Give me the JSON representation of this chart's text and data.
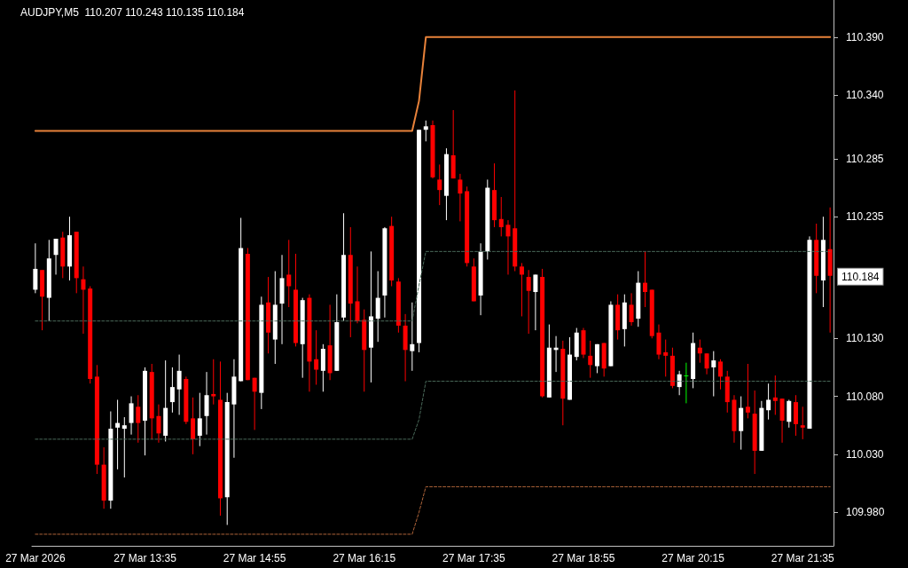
{
  "chart_data": {
    "type": "candlestick",
    "title": "AUDJPY,M5  110.207 110.243 110.135 110.184",
    "categories": [
      "27 Mar 2026",
      null,
      null,
      null,
      null,
      null,
      null,
      null,
      null,
      null,
      null,
      null,
      null,
      null,
      null,
      null,
      "27 Mar 13:35",
      null,
      null,
      null,
      null,
      null,
      null,
      null,
      null,
      null,
      null,
      null,
      null,
      null,
      null,
      null,
      "27 Mar 14:55",
      null,
      null,
      null,
      null,
      null,
      null,
      null,
      null,
      null,
      null,
      null,
      null,
      null,
      null,
      null,
      "27 Mar 16:15",
      null,
      null,
      null,
      null,
      null,
      null,
      null,
      null,
      null,
      null,
      null,
      null,
      null,
      null,
      null,
      "27 Mar 17:35",
      null,
      null,
      null,
      null,
      null,
      null,
      null,
      null,
      null,
      null,
      null,
      null,
      null,
      null,
      null,
      "27 Mar 18:55",
      null,
      null,
      null,
      null,
      null,
      null,
      null,
      null,
      null,
      null,
      null,
      null,
      null,
      null,
      null,
      "27 Mar 20:15",
      null,
      null,
      null,
      null,
      null,
      null,
      null,
      null,
      null,
      null,
      null,
      null,
      null,
      null,
      null,
      "27 Mar 21:35",
      null,
      null,
      null,
      null
    ],
    "colors": [
      "#ffffff",
      "#ff0000",
      "#ffffff",
      "#ffffff",
      "#ff0000",
      "#ffffff",
      "#ff0000",
      "#ff0000",
      "#ff0000",
      "#ff0000",
      "#ff0000",
      "#ffffff",
      "#ffffff",
      "#ffffff",
      "#ffffff",
      "#ff0000",
      "#ffffff",
      "#ff0000",
      "#ff0000",
      "#ffffff",
      "#ffffff",
      "#ffffff",
      "#ff0000",
      "#ff0000",
      "#ffffff",
      "#ffffff",
      "#ff0000",
      "#ff0000",
      "#ffffff",
      "#ffffff",
      "#ffffff",
      "#ff0000",
      "#ff0000",
      "#ffffff",
      "#ff0000",
      "#ffffff",
      "#ffffff",
      "#ff0000",
      "#ff0000",
      "#ffffff",
      "#ff0000",
      "#ff0000",
      "#ffffff",
      "#ff0000",
      "#ffffff",
      "#ffffff",
      "#ff0000",
      "#ff0000",
      "#ff0000",
      "#ffffff",
      "#ffffff",
      "#ffffff",
      "#ff0000",
      "#ff0000",
      "#ff0000",
      "#ffffff",
      "#ffffff",
      "#ffffff",
      "#ff0000",
      "#ff0000",
      "#ffffff",
      "#ff0000",
      "#ff0000",
      "#ff0000",
      "#ff0000",
      "#ffffff",
      "#ffffff",
      "#ff0000",
      "#ff0000",
      "#ff0000",
      "#ff0000",
      "#ff0000",
      "#ff0000",
      "#ffffff",
      "#ff0000",
      "#ffffff",
      "#ffffff",
      "#ff0000",
      "#ffffff",
      "#ffffff",
      "#ff0000",
      "#ff0000",
      "#ffffff",
      "#ff0000",
      "#ffffff",
      "#ff0000",
      "#ffffff",
      "#ff0000",
      "#ffffff",
      "#ff0000",
      "#ff0000",
      "#ff0000",
      "#ff0000",
      "#ff0000",
      "#ffffff",
      "#00ff00",
      "#ffffff",
      "#ff0000",
      "#ff0000",
      "#ffffff",
      "#ff0000",
      "#ff0000",
      "#ff0000",
      "#ffffff",
      "#ff0000",
      "#ff0000",
      "#ffffff",
      "#ffffff",
      "#ff0000",
      "#ff0000",
      "#ffffff",
      "#ff0000",
      "#ff0000",
      "#ffffff",
      "#ff0000",
      "#ffffff",
      "#ff0000"
    ],
    "ohlc": [
      [
        110.172,
        110.212,
        110.169,
        110.19
      ],
      [
        110.189,
        110.189,
        110.137,
        110.166
      ],
      [
        110.165,
        110.215,
        110.145,
        110.199
      ],
      [
        110.202,
        110.216,
        110.185,
        110.216
      ],
      [
        110.217,
        110.222,
        110.182,
        110.192
      ],
      [
        110.192,
        110.235,
        110.18,
        110.219
      ],
      [
        110.222,
        110.222,
        110.169,
        110.182
      ],
      [
        110.181,
        110.192,
        110.134,
        110.172
      ],
      [
        110.173,
        110.175,
        110.091,
        110.095
      ],
      [
        110.097,
        110.107,
        110.013,
        110.021
      ],
      [
        110.021,
        110.036,
        109.983,
        109.99
      ],
      [
        109.99,
        110.067,
        109.983,
        110.052
      ],
      [
        110.053,
        110.077,
        110.017,
        110.057
      ],
      [
        110.052,
        110.062,
        110.01,
        110.055
      ],
      [
        110.057,
        110.08,
        110.047,
        110.074
      ],
      [
        110.071,
        110.081,
        110.04,
        110.057
      ],
      [
        110.059,
        110.105,
        110.029,
        110.102
      ],
      [
        110.101,
        110.108,
        110.043,
        110.061
      ],
      [
        110.063,
        110.073,
        110.04,
        110.048
      ],
      [
        110.046,
        110.111,
        110.041,
        110.07
      ],
      [
        110.075,
        110.105,
        110.066,
        110.088
      ],
      [
        110.086,
        110.116,
        110.064,
        110.102
      ],
      [
        110.095,
        110.097,
        110.056,
        110.058
      ],
      [
        110.061,
        110.079,
        110.03,
        110.043
      ],
      [
        110.046,
        110.083,
        110.037,
        110.061
      ],
      [
        110.063,
        110.101,
        110.047,
        110.081
      ],
      [
        110.082,
        110.112,
        110.073,
        110.08
      ],
      [
        110.077,
        110.11,
        109.977,
        109.992
      ],
      [
        109.993,
        110.083,
        109.969,
        110.075
      ],
      [
        110.073,
        110.112,
        110.027,
        110.097
      ],
      [
        110.093,
        110.234,
        110.093,
        110.208
      ],
      [
        110.203,
        110.208,
        110.094,
        110.094
      ],
      [
        110.096,
        110.096,
        110.051,
        110.084
      ],
      [
        110.083,
        110.166,
        110.069,
        110.159
      ],
      [
        110.161,
        110.183,
        110.117,
        110.135
      ],
      [
        110.129,
        110.188,
        110.108,
        110.159
      ],
      [
        110.16,
        110.202,
        110.125,
        110.182
      ],
      [
        110.185,
        110.215,
        110.157,
        110.175
      ],
      [
        110.172,
        110.203,
        110.123,
        110.126
      ],
      [
        110.125,
        110.165,
        110.096,
        110.163
      ],
      [
        110.165,
        110.168,
        110.084,
        110.11
      ],
      [
        110.112,
        110.137,
        110.09,
        110.103
      ],
      [
        110.102,
        110.125,
        110.084,
        110.121
      ],
      [
        110.124,
        110.159,
        110.094,
        110.1
      ],
      [
        110.102,
        110.168,
        110.102,
        110.144
      ],
      [
        110.148,
        110.238,
        110.145,
        110.202
      ],
      [
        110.202,
        110.226,
        110.131,
        110.16
      ],
      [
        110.162,
        110.192,
        110.143,
        110.145
      ],
      [
        110.146,
        110.155,
        110.084,
        110.12
      ],
      [
        110.122,
        110.205,
        110.092,
        110.149
      ],
      [
        110.147,
        110.188,
        110.127,
        110.165
      ],
      [
        110.167,
        110.226,
        110.148,
        110.225
      ],
      [
        110.227,
        110.235,
        110.175,
        110.18
      ],
      [
        110.179,
        110.182,
        110.135,
        110.141
      ],
      [
        110.141,
        110.151,
        110.093,
        110.12
      ],
      [
        110.119,
        110.161,
        110.102,
        110.125
      ],
      [
        110.126,
        110.31,
        110.118,
        110.31
      ],
      [
        110.31,
        110.318,
        110.3,
        110.313
      ],
      [
        110.314,
        110.318,
        110.268,
        110.269
      ],
      [
        110.267,
        110.28,
        110.245,
        110.258
      ],
      [
        110.253,
        110.294,
        110.232,
        110.289
      ],
      [
        110.288,
        110.327,
        110.268,
        110.268
      ],
      [
        110.267,
        110.272,
        110.231,
        110.255
      ],
      [
        110.257,
        110.261,
        110.192,
        110.195
      ],
      [
        110.192,
        110.199,
        110.162,
        110.162
      ],
      [
        110.167,
        110.212,
        110.15,
        110.205
      ],
      [
        110.205,
        110.267,
        110.198,
        110.26
      ],
      [
        110.258,
        110.281,
        110.226,
        110.232
      ],
      [
        110.233,
        110.252,
        110.218,
        110.226
      ],
      [
        110.228,
        110.232,
        110.185,
        110.218
      ],
      [
        110.225,
        110.344,
        110.188,
        110.192
      ],
      [
        110.192,
        110.195,
        110.149,
        110.185
      ],
      [
        110.183,
        110.189,
        110.134,
        110.171
      ],
      [
        110.17,
        110.185,
        110.137,
        110.185
      ],
      [
        110.183,
        110.19,
        110.079,
        110.08
      ],
      [
        110.079,
        110.142,
        110.079,
        110.122
      ],
      [
        110.12,
        110.132,
        110.101,
        110.122
      ],
      [
        110.121,
        110.128,
        110.055,
        110.078
      ],
      [
        110.077,
        110.131,
        110.077,
        110.116
      ],
      [
        110.114,
        110.139,
        110.111,
        110.135
      ],
      [
        110.137,
        110.139,
        110.113,
        110.116
      ],
      [
        110.115,
        110.128,
        110.096,
        110.107
      ],
      [
        110.106,
        110.125,
        110.1,
        110.125
      ],
      [
        110.126,
        110.126,
        110.097,
        110.104
      ],
      [
        110.106,
        110.162,
        110.106,
        110.159
      ],
      [
        110.159,
        110.168,
        110.129,
        110.137
      ],
      [
        110.138,
        110.168,
        110.123,
        110.161
      ],
      [
        110.159,
        110.169,
        110.141,
        110.144
      ],
      [
        110.147,
        110.188,
        110.14,
        110.178
      ],
      [
        110.178,
        110.205,
        110.157,
        110.17
      ],
      [
        110.172,
        110.172,
        110.13,
        110.132
      ],
      [
        110.135,
        110.142,
        110.112,
        110.116
      ],
      [
        110.118,
        110.129,
        110.097,
        110.115
      ],
      [
        110.115,
        110.122,
        110.087,
        110.089
      ],
      [
        110.088,
        110.102,
        110.081,
        110.099
      ],
      [
        110.098,
        110.109,
        110.074,
        110.098
      ],
      [
        110.095,
        110.135,
        110.087,
        110.126
      ],
      [
        110.122,
        110.129,
        110.109,
        110.117
      ],
      [
        110.117,
        110.117,
        110.099,
        110.104
      ],
      [
        110.105,
        110.119,
        110.08,
        110.111
      ],
      [
        110.11,
        110.112,
        110.086,
        110.097
      ],
      [
        110.097,
        110.102,
        110.066,
        110.075
      ],
      [
        110.077,
        110.081,
        110.04,
        110.05
      ],
      [
        110.05,
        110.08,
        110.034,
        110.07
      ],
      [
        110.071,
        110.108,
        110.061,
        110.066
      ],
      [
        110.065,
        110.085,
        110.013,
        110.033
      ],
      [
        110.033,
        110.076,
        110.033,
        110.07
      ],
      [
        110.068,
        110.091,
        110.06,
        110.077
      ],
      [
        110.079,
        110.098,
        110.064,
        110.076
      ],
      [
        110.078,
        110.078,
        110.04,
        110.059
      ],
      [
        110.058,
        110.077,
        110.053,
        110.076
      ],
      [
        110.075,
        110.081,
        110.046,
        110.056
      ],
      [
        110.055,
        110.071,
        110.043,
        110.053
      ],
      [
        110.052,
        110.218,
        110.052,
        110.215
      ],
      [
        110.215,
        110.229,
        110.169,
        110.184
      ],
      [
        110.18,
        110.235,
        110.157,
        110.215
      ],
      [
        110.207,
        110.243,
        110.135,
        110.184
      ]
    ],
    "series": [
      {
        "type": "line",
        "color": "#e8823a",
        "line_style": "solid",
        "values": [
          110.309,
          110.309,
          110.309,
          110.309,
          110.309,
          110.309,
          110.309,
          110.309,
          110.309,
          110.309,
          110.309,
          110.309,
          110.309,
          110.309,
          110.309,
          110.309,
          110.309,
          110.309,
          110.309,
          110.309,
          110.309,
          110.309,
          110.309,
          110.309,
          110.309,
          110.309,
          110.309,
          110.309,
          110.309,
          110.309,
          110.309,
          110.309,
          110.309,
          110.309,
          110.309,
          110.309,
          110.309,
          110.309,
          110.309,
          110.309,
          110.309,
          110.309,
          110.309,
          110.309,
          110.309,
          110.309,
          110.309,
          110.309,
          110.309,
          110.309,
          110.309,
          110.309,
          110.309,
          110.309,
          110.309,
          110.309,
          110.335,
          110.39,
          110.39,
          110.39,
          110.39,
          110.39,
          110.39,
          110.39,
          110.39,
          110.39,
          110.39,
          110.39,
          110.39,
          110.39,
          110.39,
          110.39,
          110.39,
          110.39,
          110.39,
          110.39,
          110.39,
          110.39,
          110.39,
          110.39,
          110.39,
          110.39,
          110.39,
          110.39,
          110.39,
          110.39,
          110.39,
          110.39,
          110.39,
          110.39,
          110.39,
          110.39,
          110.39,
          110.39,
          110.39,
          110.39,
          110.39,
          110.39,
          110.39,
          110.39,
          110.39,
          110.39,
          110.39,
          110.39,
          110.39,
          110.39,
          110.39,
          110.39,
          110.39,
          110.39,
          110.39,
          110.39,
          110.39,
          110.39,
          110.39,
          110.39,
          110.39
        ]
      },
      {
        "type": "line",
        "color": "#4a6a5a",
        "line_style": "dashed",
        "values": [
          110.145,
          110.145,
          110.145,
          110.145,
          110.145,
          110.145,
          110.145,
          110.145,
          110.145,
          110.145,
          110.145,
          110.145,
          110.145,
          110.145,
          110.145,
          110.145,
          110.145,
          110.145,
          110.145,
          110.145,
          110.145,
          110.145,
          110.145,
          110.145,
          110.145,
          110.145,
          110.145,
          110.145,
          110.145,
          110.145,
          110.145,
          110.145,
          110.145,
          110.145,
          110.145,
          110.145,
          110.145,
          110.145,
          110.145,
          110.145,
          110.145,
          110.145,
          110.145,
          110.145,
          110.145,
          110.145,
          110.145,
          110.145,
          110.145,
          110.145,
          110.145,
          110.145,
          110.145,
          110.145,
          110.145,
          110.145,
          110.176,
          110.205,
          110.205,
          110.205,
          110.205,
          110.205,
          110.205,
          110.205,
          110.205,
          110.205,
          110.205,
          110.205,
          110.205,
          110.205,
          110.205,
          110.205,
          110.205,
          110.205,
          110.205,
          110.205,
          110.205,
          110.205,
          110.205,
          110.205,
          110.205,
          110.205,
          110.205,
          110.205,
          110.205,
          110.205,
          110.205,
          110.205,
          110.205,
          110.205,
          110.205,
          110.205,
          110.205,
          110.205,
          110.205,
          110.205,
          110.205,
          110.205,
          110.205,
          110.205,
          110.205,
          110.205,
          110.205,
          110.205,
          110.205,
          110.205,
          110.205,
          110.205,
          110.205,
          110.205,
          110.205,
          110.205,
          110.205,
          110.205,
          110.205,
          110.205,
          110.205
        ]
      },
      {
        "type": "line",
        "color": "#4a6a5a",
        "line_style": "dashed",
        "values": [
          110.043,
          110.043,
          110.043,
          110.043,
          110.043,
          110.043,
          110.043,
          110.043,
          110.043,
          110.043,
          110.043,
          110.043,
          110.043,
          110.043,
          110.043,
          110.043,
          110.043,
          110.043,
          110.043,
          110.043,
          110.043,
          110.043,
          110.043,
          110.043,
          110.043,
          110.043,
          110.043,
          110.043,
          110.043,
          110.043,
          110.043,
          110.043,
          110.043,
          110.043,
          110.043,
          110.043,
          110.043,
          110.043,
          110.043,
          110.043,
          110.043,
          110.043,
          110.043,
          110.043,
          110.043,
          110.043,
          110.043,
          110.043,
          110.043,
          110.043,
          110.043,
          110.043,
          110.043,
          110.043,
          110.043,
          110.043,
          110.06,
          110.093,
          110.093,
          110.093,
          110.093,
          110.093,
          110.093,
          110.093,
          110.093,
          110.093,
          110.093,
          110.093,
          110.093,
          110.093,
          110.093,
          110.093,
          110.093,
          110.093,
          110.093,
          110.093,
          110.093,
          110.093,
          110.093,
          110.093,
          110.093,
          110.093,
          110.093,
          110.093,
          110.093,
          110.093,
          110.093,
          110.093,
          110.093,
          110.093,
          110.093,
          110.093,
          110.093,
          110.093,
          110.093,
          110.093,
          110.093,
          110.093,
          110.093,
          110.093,
          110.093,
          110.093,
          110.093,
          110.093,
          110.093,
          110.093,
          110.093,
          110.093,
          110.093,
          110.093,
          110.093,
          110.093,
          110.093,
          110.093,
          110.093,
          110.093,
          110.093
        ]
      },
      {
        "type": "line",
        "color": "#b0653a",
        "line_style": "dashed",
        "values": [
          109.961,
          109.961,
          109.961,
          109.961,
          109.961,
          109.961,
          109.961,
          109.961,
          109.961,
          109.961,
          109.961,
          109.961,
          109.961,
          109.961,
          109.961,
          109.961,
          109.961,
          109.961,
          109.961,
          109.961,
          109.961,
          109.961,
          109.961,
          109.961,
          109.961,
          109.961,
          109.961,
          109.961,
          109.961,
          109.961,
          109.961,
          109.961,
          109.961,
          109.961,
          109.961,
          109.961,
          109.961,
          109.961,
          109.961,
          109.961,
          109.961,
          109.961,
          109.961,
          109.961,
          109.961,
          109.961,
          109.961,
          109.961,
          109.961,
          109.961,
          109.961,
          109.961,
          109.961,
          109.961,
          109.961,
          109.961,
          109.98,
          110.002,
          110.002,
          110.002,
          110.002,
          110.002,
          110.002,
          110.002,
          110.002,
          110.002,
          110.002,
          110.002,
          110.002,
          110.002,
          110.002,
          110.002,
          110.002,
          110.002,
          110.002,
          110.002,
          110.002,
          110.002,
          110.002,
          110.002,
          110.002,
          110.002,
          110.002,
          110.002,
          110.002,
          110.002,
          110.002,
          110.002,
          110.002,
          110.002,
          110.002,
          110.002,
          110.002,
          110.002,
          110.002,
          110.002,
          110.002,
          110.002,
          110.002,
          110.002,
          110.002,
          110.002,
          110.002,
          110.002,
          110.002,
          110.002,
          110.002,
          110.002,
          110.002,
          110.002,
          110.002,
          110.002,
          110.002,
          110.002,
          110.002,
          110.002,
          110.002
        ]
      }
    ],
    "annotations": [
      "110.184"
    ],
    "ylim": [
      109.951,
      110.422
    ],
    "yticks": [
      {
        "value": 109.98,
        "label": "109.980"
      },
      {
        "value": 110.03,
        "label": "110.030"
      },
      {
        "value": 110.08,
        "label": "110.080"
      },
      {
        "value": 110.13,
        "label": "110.130"
      },
      {
        "value": 110.235,
        "label": "110.235"
      },
      {
        "value": 110.285,
        "label": "110.285"
      },
      {
        "value": 110.34,
        "label": "110.340"
      },
      {
        "value": 110.39,
        "label": "110.390"
      }
    ]
  }
}
